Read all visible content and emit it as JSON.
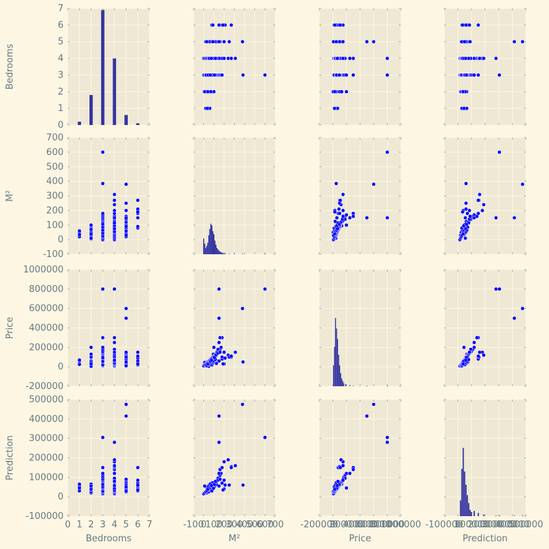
{
  "chart_data": {
    "type": "scatter",
    "variables": [
      "Bedrooms",
      "M²",
      "Price",
      "Prediction"
    ],
    "colors": {
      "figure_bg": "#fdf6e3",
      "panel_bg": "#eee8d5",
      "grid": "#fdf6e3",
      "points": "#0000ff",
      "hist": "#3333a0",
      "text": "#657b83"
    },
    "grid": true,
    "ranges": [
      [
        0,
        7
      ],
      [
        -100,
        700
      ],
      [
        -200000,
        1000000
      ],
      [
        -100000,
        500000
      ]
    ],
    "ticks": [
      [
        0,
        1,
        2,
        3,
        4,
        5,
        6,
        7
      ],
      [
        -100,
        0,
        100,
        200,
        300,
        400,
        500,
        600,
        700
      ],
      [
        -200000,
        0,
        200000,
        400000,
        600000,
        800000,
        1000000
      ],
      [
        -100000,
        0,
        100000,
        200000,
        300000,
        400000,
        500000
      ]
    ],
    "tick_labels": [
      [
        "0",
        "1",
        "2",
        "3",
        "4",
        "5",
        "6",
        "7"
      ],
      [
        "-100",
        "0",
        "100",
        "200",
        "300",
        "400",
        "500",
        "600",
        "700"
      ],
      [
        "-200000",
        "0",
        "200000",
        "400000",
        "600000",
        "800000",
        "1000000"
      ],
      [
        "-100000",
        "0",
        "100000",
        "200000",
        "300000",
        "400000",
        "500000"
      ]
    ],
    "x_tick_labels_bottom": [
      [
        "0",
        "1",
        "2",
        "3",
        "4",
        "5",
        "6",
        "7"
      ],
      [
        "-100",
        "0",
        "100",
        "200",
        "300",
        "400",
        "500",
        "600",
        "700"
      ],
      [
        "-200000",
        "0",
        "200000",
        "400000",
        "600000",
        "800000",
        "1000000"
      ],
      [
        "-100000",
        "0",
        "100000",
        "200000",
        "300000",
        "400000",
        "500000"
      ]
    ],
    "histograms": [
      {
        "bins": [
          [
            1,
            0.2
          ],
          [
            2,
            1.8
          ],
          [
            3,
            6.9
          ],
          [
            4,
            4.0
          ],
          [
            5,
            0.6
          ],
          [
            6,
            0.1
          ]
        ],
        "bin_width": 0.28
      },
      {
        "bins": [
          [
            0,
            30
          ],
          [
            10,
            20
          ],
          [
            20,
            12
          ],
          [
            30,
            16
          ],
          [
            40,
            22
          ],
          [
            50,
            36
          ],
          [
            60,
            48
          ],
          [
            70,
            58
          ],
          [
            80,
            55
          ],
          [
            90,
            44
          ],
          [
            100,
            38
          ],
          [
            110,
            26
          ],
          [
            120,
            18
          ],
          [
            130,
            12
          ],
          [
            140,
            9
          ],
          [
            150,
            7
          ],
          [
            160,
            5
          ],
          [
            170,
            4
          ],
          [
            180,
            3
          ],
          [
            190,
            2
          ],
          [
            210,
            2
          ],
          [
            250,
            1
          ],
          [
            300,
            1
          ],
          [
            380,
            1
          ],
          [
            600,
            1
          ]
        ],
        "bin_width": 10,
        "vmax": 200
      },
      {
        "bins": [
          [
            10000,
            40
          ],
          [
            25000,
            75
          ],
          [
            40000,
            130
          ],
          [
            55000,
            110
          ],
          [
            70000,
            90
          ],
          [
            85000,
            60
          ],
          [
            100000,
            40
          ],
          [
            115000,
            25
          ],
          [
            130000,
            15
          ],
          [
            145000,
            10
          ],
          [
            160000,
            6
          ],
          [
            190000,
            4
          ],
          [
            250000,
            2
          ],
          [
            300000,
            1
          ],
          [
            500000,
            1
          ],
          [
            800000,
            1
          ]
        ],
        "bin_width": 14000,
        "vmax": 200
      },
      {
        "bins": [
          [
            20000,
            30
          ],
          [
            30000,
            90
          ],
          [
            40000,
            130
          ],
          [
            50000,
            85
          ],
          [
            60000,
            60
          ],
          [
            70000,
            40
          ],
          [
            80000,
            25
          ],
          [
            90000,
            12
          ],
          [
            100000,
            8
          ],
          [
            120000,
            10
          ],
          [
            150000,
            6
          ],
          [
            190000,
            3
          ],
          [
            280000,
            1
          ],
          [
            305000,
            1
          ],
          [
            415000,
            1
          ],
          [
            475000,
            1
          ]
        ],
        "bin_width": 9000,
        "vmax": 200
      }
    ],
    "records": [
      [
        1,
        30,
        50000,
        40000
      ],
      [
        1,
        20,
        30000,
        30000
      ],
      [
        1,
        45,
        60000,
        55000
      ],
      [
        1,
        60,
        70000,
        65000
      ],
      [
        1,
        35,
        25000,
        45000
      ],
      [
        2,
        5,
        15000,
        20000
      ],
      [
        2,
        15,
        25000,
        25000
      ],
      [
        2,
        25,
        30000,
        30000
      ],
      [
        2,
        35,
        40000,
        35000
      ],
      [
        2,
        45,
        45000,
        40000
      ],
      [
        2,
        55,
        50000,
        45000
      ],
      [
        2,
        65,
        55000,
        50000
      ],
      [
        2,
        75,
        60000,
        55000
      ],
      [
        2,
        85,
        100000,
        60000
      ],
      [
        2,
        95,
        130000,
        65000
      ],
      [
        2,
        100,
        200000,
        45000
      ],
      [
        2,
        30,
        10000,
        20000
      ],
      [
        2,
        50,
        5000,
        25000
      ],
      [
        2,
        70,
        35000,
        35000
      ],
      [
        2,
        10,
        45000,
        55000
      ],
      [
        3,
        0,
        10000,
        15000
      ],
      [
        3,
        10,
        20000,
        20000
      ],
      [
        3,
        20,
        30000,
        25000
      ],
      [
        3,
        30,
        40000,
        30000
      ],
      [
        3,
        40,
        50000,
        35000
      ],
      [
        3,
        50,
        60000,
        40000
      ],
      [
        3,
        60,
        70000,
        45000
      ],
      [
        3,
        70,
        80000,
        50000
      ],
      [
        3,
        80,
        90000,
        55000
      ],
      [
        3,
        90,
        100000,
        60000
      ],
      [
        3,
        100,
        110000,
        65000
      ],
      [
        3,
        110,
        120000,
        70000
      ],
      [
        3,
        120,
        130000,
        75000
      ],
      [
        3,
        130,
        140000,
        80000
      ],
      [
        3,
        140,
        150000,
        90000
      ],
      [
        3,
        150,
        160000,
        100000
      ],
      [
        3,
        160,
        180000,
        110000
      ],
      [
        3,
        170,
        200000,
        120000
      ],
      [
        3,
        180,
        300000,
        150000
      ],
      [
        3,
        385,
        50000,
        60000
      ],
      [
        3,
        600,
        800000,
        305000
      ],
      [
        3,
        25,
        15000,
        28000
      ],
      [
        3,
        55,
        45000,
        42000
      ],
      [
        3,
        75,
        65000,
        48000
      ],
      [
        3,
        95,
        85000,
        58000
      ],
      [
        3,
        115,
        105000,
        68000
      ],
      [
        4,
        0,
        10000,
        15000
      ],
      [
        4,
        10,
        20000,
        20000
      ],
      [
        4,
        20,
        30000,
        25000
      ],
      [
        4,
        30,
        40000,
        30000
      ],
      [
        4,
        40,
        50000,
        35000
      ],
      [
        4,
        50,
        60000,
        40000
      ],
      [
        4,
        60,
        70000,
        45000
      ],
      [
        4,
        70,
        80000,
        50000
      ],
      [
        4,
        80,
        90000,
        55000
      ],
      [
        4,
        90,
        100000,
        60000
      ],
      [
        4,
        100,
        110000,
        65000
      ],
      [
        4,
        110,
        120000,
        70000
      ],
      [
        4,
        120,
        130000,
        75000
      ],
      [
        4,
        130,
        150000,
        85000
      ],
      [
        4,
        140,
        180000,
        95000
      ],
      [
        4,
        150,
        250000,
        120000
      ],
      [
        4,
        160,
        300000,
        140000
      ],
      [
        4,
        180,
        80000,
        150000
      ],
      [
        4,
        200,
        150000,
        180000
      ],
      [
        4,
        240,
        120000,
        190000
      ],
      [
        4,
        270,
        100000,
        155000
      ],
      [
        4,
        310,
        150000,
        160000
      ],
      [
        4,
        150,
        800000,
        280000
      ],
      [
        4,
        65,
        25000,
        33000
      ],
      [
        4,
        85,
        45000,
        47000
      ],
      [
        4,
        105,
        65000,
        52000
      ],
      [
        4,
        125,
        35000,
        62000
      ],
      [
        5,
        20,
        20000,
        25000
      ],
      [
        5,
        40,
        40000,
        35000
      ],
      [
        5,
        60,
        60000,
        45000
      ],
      [
        5,
        80,
        80000,
        55000
      ],
      [
        5,
        100,
        100000,
        65000
      ],
      [
        5,
        120,
        120000,
        75000
      ],
      [
        5,
        140,
        140000,
        85000
      ],
      [
        5,
        160,
        150000,
        90000
      ],
      [
        5,
        200,
        30000,
        40000
      ],
      [
        5,
        250,
        100000,
        60000
      ],
      [
        5,
        380,
        600000,
        475000
      ],
      [
        5,
        150,
        500000,
        415000
      ],
      [
        5,
        30,
        10000,
        30000
      ],
      [
        5,
        90,
        50000,
        50000
      ],
      [
        6,
        80,
        20000,
        30000
      ],
      [
        6,
        90,
        40000,
        45000
      ],
      [
        6,
        150,
        60000,
        55000
      ],
      [
        6,
        180,
        100000,
        70000
      ],
      [
        6,
        200,
        150000,
        85000
      ],
      [
        6,
        210,
        90000,
        60000
      ],
      [
        6,
        270,
        110000,
        150000
      ],
      [
        6,
        190,
        30000,
        35000
      ],
      [
        3,
        45,
        22000,
        52000
      ],
      [
        4,
        55,
        38000,
        61000
      ],
      [
        3,
        85,
        48000,
        72000
      ],
      [
        4,
        95,
        58000,
        43000
      ],
      [
        2,
        40,
        28000,
        38000
      ],
      [
        3,
        65,
        55000,
        66000
      ],
      [
        4,
        115,
        75000,
        79000
      ],
      [
        3,
        105,
        95000,
        63000
      ],
      [
        4,
        75,
        68000,
        57000
      ]
    ]
  }
}
